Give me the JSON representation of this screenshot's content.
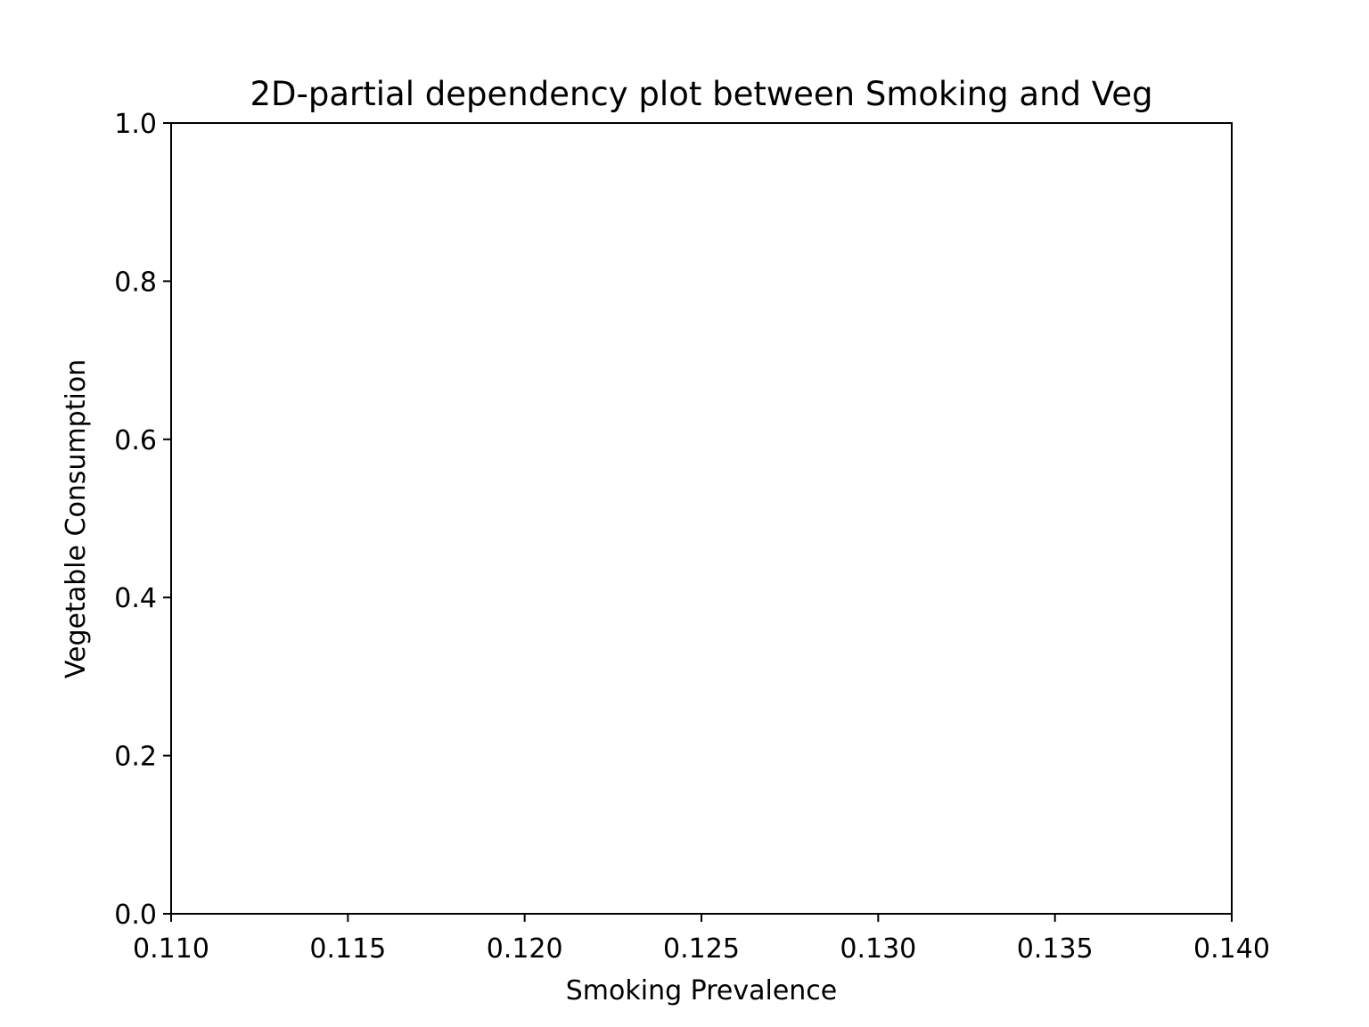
{
  "chart_data": {
    "type": "heatmap",
    "title": "2D-partial dependency plot between Smoking and Veg",
    "xlabel": "Smoking Prevalence",
    "ylabel": "Vegetable Consumption",
    "xlim": [
      0.11,
      0.14
    ],
    "ylim": [
      0.0,
      1.0
    ],
    "x_ticks": [
      0.11,
      0.115,
      0.12,
      0.125,
      0.13,
      0.135,
      0.14
    ],
    "x_tick_labels": [
      "0.110",
      "0.115",
      "0.120",
      "0.125",
      "0.130",
      "0.135",
      "0.140"
    ],
    "y_ticks": [
      0.0,
      0.2,
      0.4,
      0.6,
      0.8,
      1.0
    ],
    "y_tick_labels": [
      "0.0",
      "0.2",
      "0.4",
      "0.6",
      "0.8",
      "1.0"
    ],
    "grid": false,
    "legend": "none",
    "series": []
  }
}
